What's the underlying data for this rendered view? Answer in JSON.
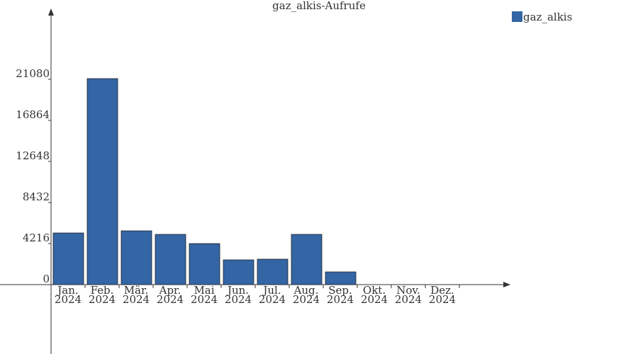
{
  "chart_data": {
    "type": "bar",
    "title": "gaz_alkis-Aufrufe",
    "categories": [
      [
        "Jan.",
        "2024"
      ],
      [
        "Feb.",
        "2024"
      ],
      [
        "Mär.",
        "2024"
      ],
      [
        "Apr.",
        "2024"
      ],
      [
        "Mai",
        "2024"
      ],
      [
        "Jun.",
        "2024"
      ],
      [
        "Jul.",
        "2024"
      ],
      [
        "Aug.",
        "2024"
      ],
      [
        "Sep.",
        "2024"
      ],
      [
        "Okt.",
        "2024"
      ],
      [
        "Nov.",
        "2024"
      ],
      [
        "Dez.",
        "2024"
      ]
    ],
    "series": [
      {
        "name": "gaz_alkis",
        "color": "#3465a4",
        "values": [
          5306,
          21150,
          5524,
          5160,
          4216,
          2544,
          2617,
          5160,
          1308,
          0,
          0,
          0
        ]
      }
    ],
    "ylim": [
      -7120,
      28130
    ],
    "yticks": [
      0,
      4216,
      8432,
      12648,
      16864,
      21080
    ],
    "legend": "top-right"
  }
}
